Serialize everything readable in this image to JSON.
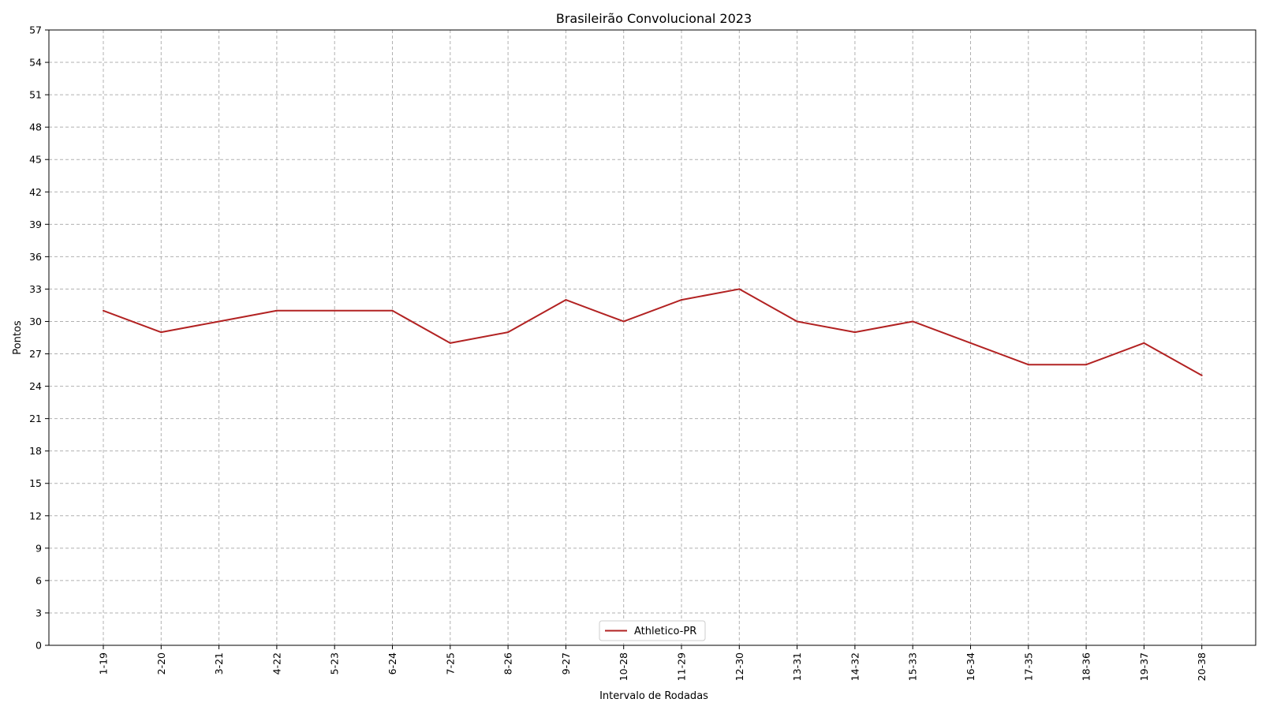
{
  "chart_data": {
    "type": "line",
    "title": "Brasileirão Convolucional 2023",
    "xlabel": "Intervalo de Rodadas",
    "ylabel": "Pontos",
    "categories": [
      "1-19",
      "2-20",
      "3-21",
      "4-22",
      "5-23",
      "6-24",
      "7-25",
      "8-26",
      "9-27",
      "10-28",
      "11-29",
      "12-30",
      "13-31",
      "14-32",
      "15-33",
      "16-34",
      "17-35",
      "18-36",
      "19-37",
      "20-38"
    ],
    "series": [
      {
        "name": "Athletico-PR",
        "color": "#b22222",
        "values": [
          31,
          29,
          30,
          31,
          31,
          31,
          28,
          29,
          32,
          30,
          32,
          33,
          30,
          29,
          30,
          28,
          26,
          26,
          28,
          25
        ]
      }
    ],
    "ylim": [
      0,
      57
    ],
    "yticks": [
      0,
      3,
      6,
      9,
      12,
      15,
      18,
      21,
      24,
      27,
      30,
      33,
      36,
      39,
      42,
      45,
      48,
      51,
      54,
      57
    ],
    "grid": true,
    "legend_position": "bottom-center"
  }
}
